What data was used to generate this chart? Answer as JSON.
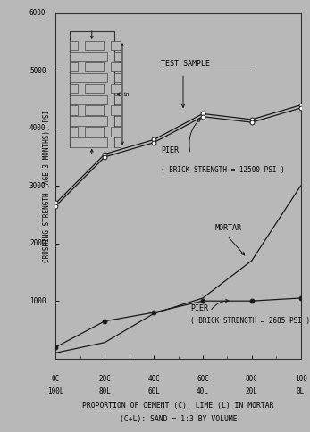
{
  "background_color": "#b8b8b8",
  "plot_bg_color": "#b8b8b8",
  "ylabel": "CRUSHING STRENGTH (AGE 3 MONTHS), PSI",
  "xlabel_line1": "PROPORTION OF CEMENT (C): LIME (L) IN MORTAR",
  "xlabel_line2": "(C+L): SAND = 1:3 BY VOLUME",
  "xlim": [
    0,
    100
  ],
  "ylim": [
    0,
    6000
  ],
  "yticks": [
    0,
    1000,
    2000,
    3000,
    4000,
    5000,
    6000
  ],
  "xticks": [
    0,
    20,
    40,
    60,
    80,
    100
  ],
  "xtick_labels_top": [
    "0C",
    "20C",
    "40C",
    "60C",
    "80C",
    "100"
  ],
  "xtick_labels_bot": [
    "100L",
    "80L",
    "60L",
    "40L",
    "20L",
    "0L"
  ],
  "test_sample_x": [
    0,
    20,
    40,
    60,
    80,
    100
  ],
  "test_sample_y": [
    2700,
    3550,
    3800,
    4250,
    4150,
    4400
  ],
  "pier_high_x": [
    0,
    20,
    40,
    60,
    80,
    100
  ],
  "pier_high_y": [
    2650,
    3500,
    3750,
    4200,
    4100,
    4350
  ],
  "mortar_x": [
    0,
    20,
    40,
    60,
    80,
    100
  ],
  "mortar_y": [
    100,
    280,
    780,
    1050,
    1700,
    3000
  ],
  "pier_low_x": [
    0,
    20,
    40,
    60,
    80,
    100
  ],
  "pier_low_y": [
    200,
    650,
    800,
    1000,
    1000,
    1050
  ],
  "line_color": "#1a1a1a",
  "label_test_sample": "TEST SAMPLE",
  "label_pier_high_1": "PIER",
  "label_pier_high_2": "( BRICK STRENGTH = 12500 PSI )",
  "label_mortar": "MORTAR",
  "label_pier_low_1": "PIER",
  "label_pier_low_2": "( BRICK STRENGTH = 2685 PSI )",
  "fontsize_labels": 6.0,
  "fontsize_axis": 5.5,
  "fontsize_xlabel": 5.8
}
